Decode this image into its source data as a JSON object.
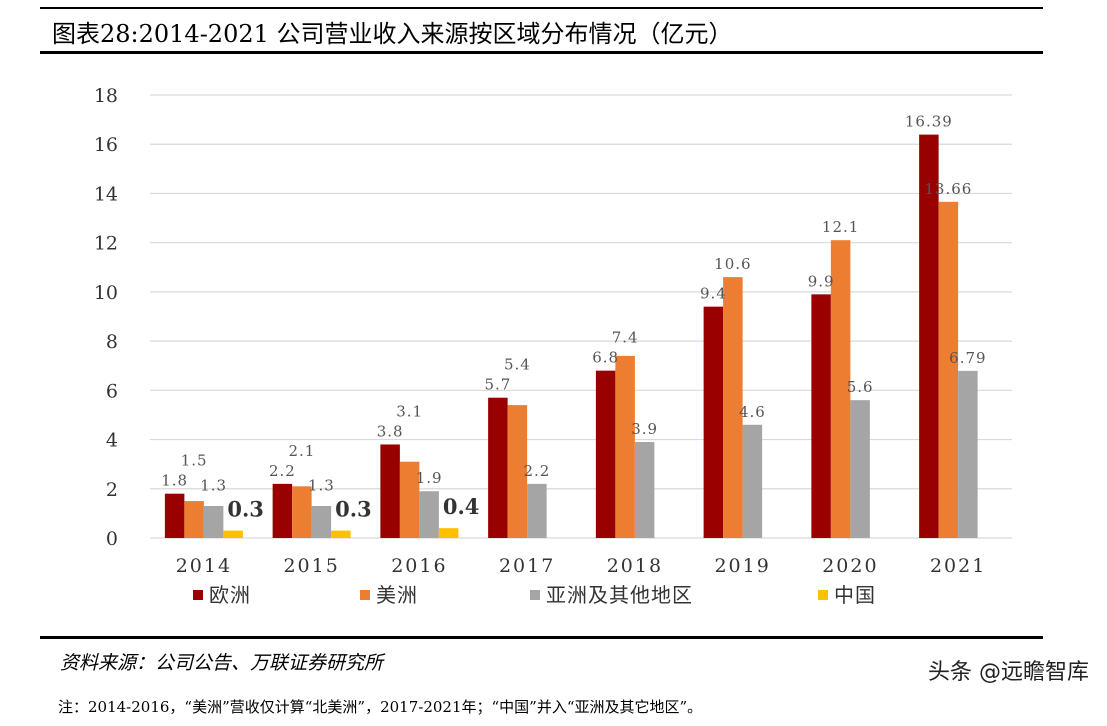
{
  "header": {
    "title": "图表28:2014-2021 公司营业收入来源按区域分布情况（亿元）"
  },
  "footer": {
    "source": "资料来源：公司公告、万联证券研究所",
    "note": "注：2014-2016，“美洲”营收仅计算“北美洲”，2017-2021年；“中国”并入“亚洲及其它地区”。",
    "watermark": "头条 @远瞻智库"
  },
  "chart_data": {
    "type": "bar",
    "title": "",
    "xlabel": "",
    "ylabel": "",
    "ylim": [
      0,
      18
    ],
    "yticks": [
      "0",
      "2",
      "4",
      "6",
      "8",
      "10",
      "12",
      "14",
      "16",
      "18"
    ],
    "grid": true,
    "legend": "bottom",
    "categories": [
      "2014",
      "2015",
      "2016",
      "2017",
      "2018",
      "2019",
      "2020",
      "2021"
    ],
    "series": [
      {
        "name": "欧洲",
        "color": "#990000",
        "values": [
          1.8,
          2.2,
          3.8,
          5.7,
          6.8,
          9.4,
          9.9,
          16.39
        ],
        "labels": [
          "1.8",
          "2.2",
          "3.8",
          "5.7",
          "6.8",
          "9.4",
          "9.9",
          "16.39"
        ]
      },
      {
        "name": "美洲",
        "color": "#ED7D31",
        "values": [
          1.5,
          2.1,
          3.1,
          5.4,
          7.4,
          10.6,
          12.1,
          13.66
        ],
        "labels": [
          "1.5",
          "2.1",
          "3.1",
          "5.4",
          "7.4",
          "10.6",
          "12.1",
          "13.66"
        ]
      },
      {
        "name": "亚洲及其他地区",
        "color": "#A5A5A5",
        "values": [
          1.3,
          1.3,
          1.9,
          2.2,
          3.9,
          4.6,
          5.6,
          6.79
        ],
        "labels": [
          "1.3",
          "1.3",
          "1.9",
          "2.2",
          "3.9",
          "4.6",
          "5.6",
          "6.79"
        ]
      },
      {
        "name": "中国",
        "color": "#FFC000",
        "values": [
          0.3,
          0.3,
          0.4,
          null,
          null,
          null,
          null,
          null
        ],
        "labels": [
          "0.3",
          "0.3",
          "0.4",
          null,
          null,
          null,
          null,
          null
        ]
      }
    ]
  }
}
